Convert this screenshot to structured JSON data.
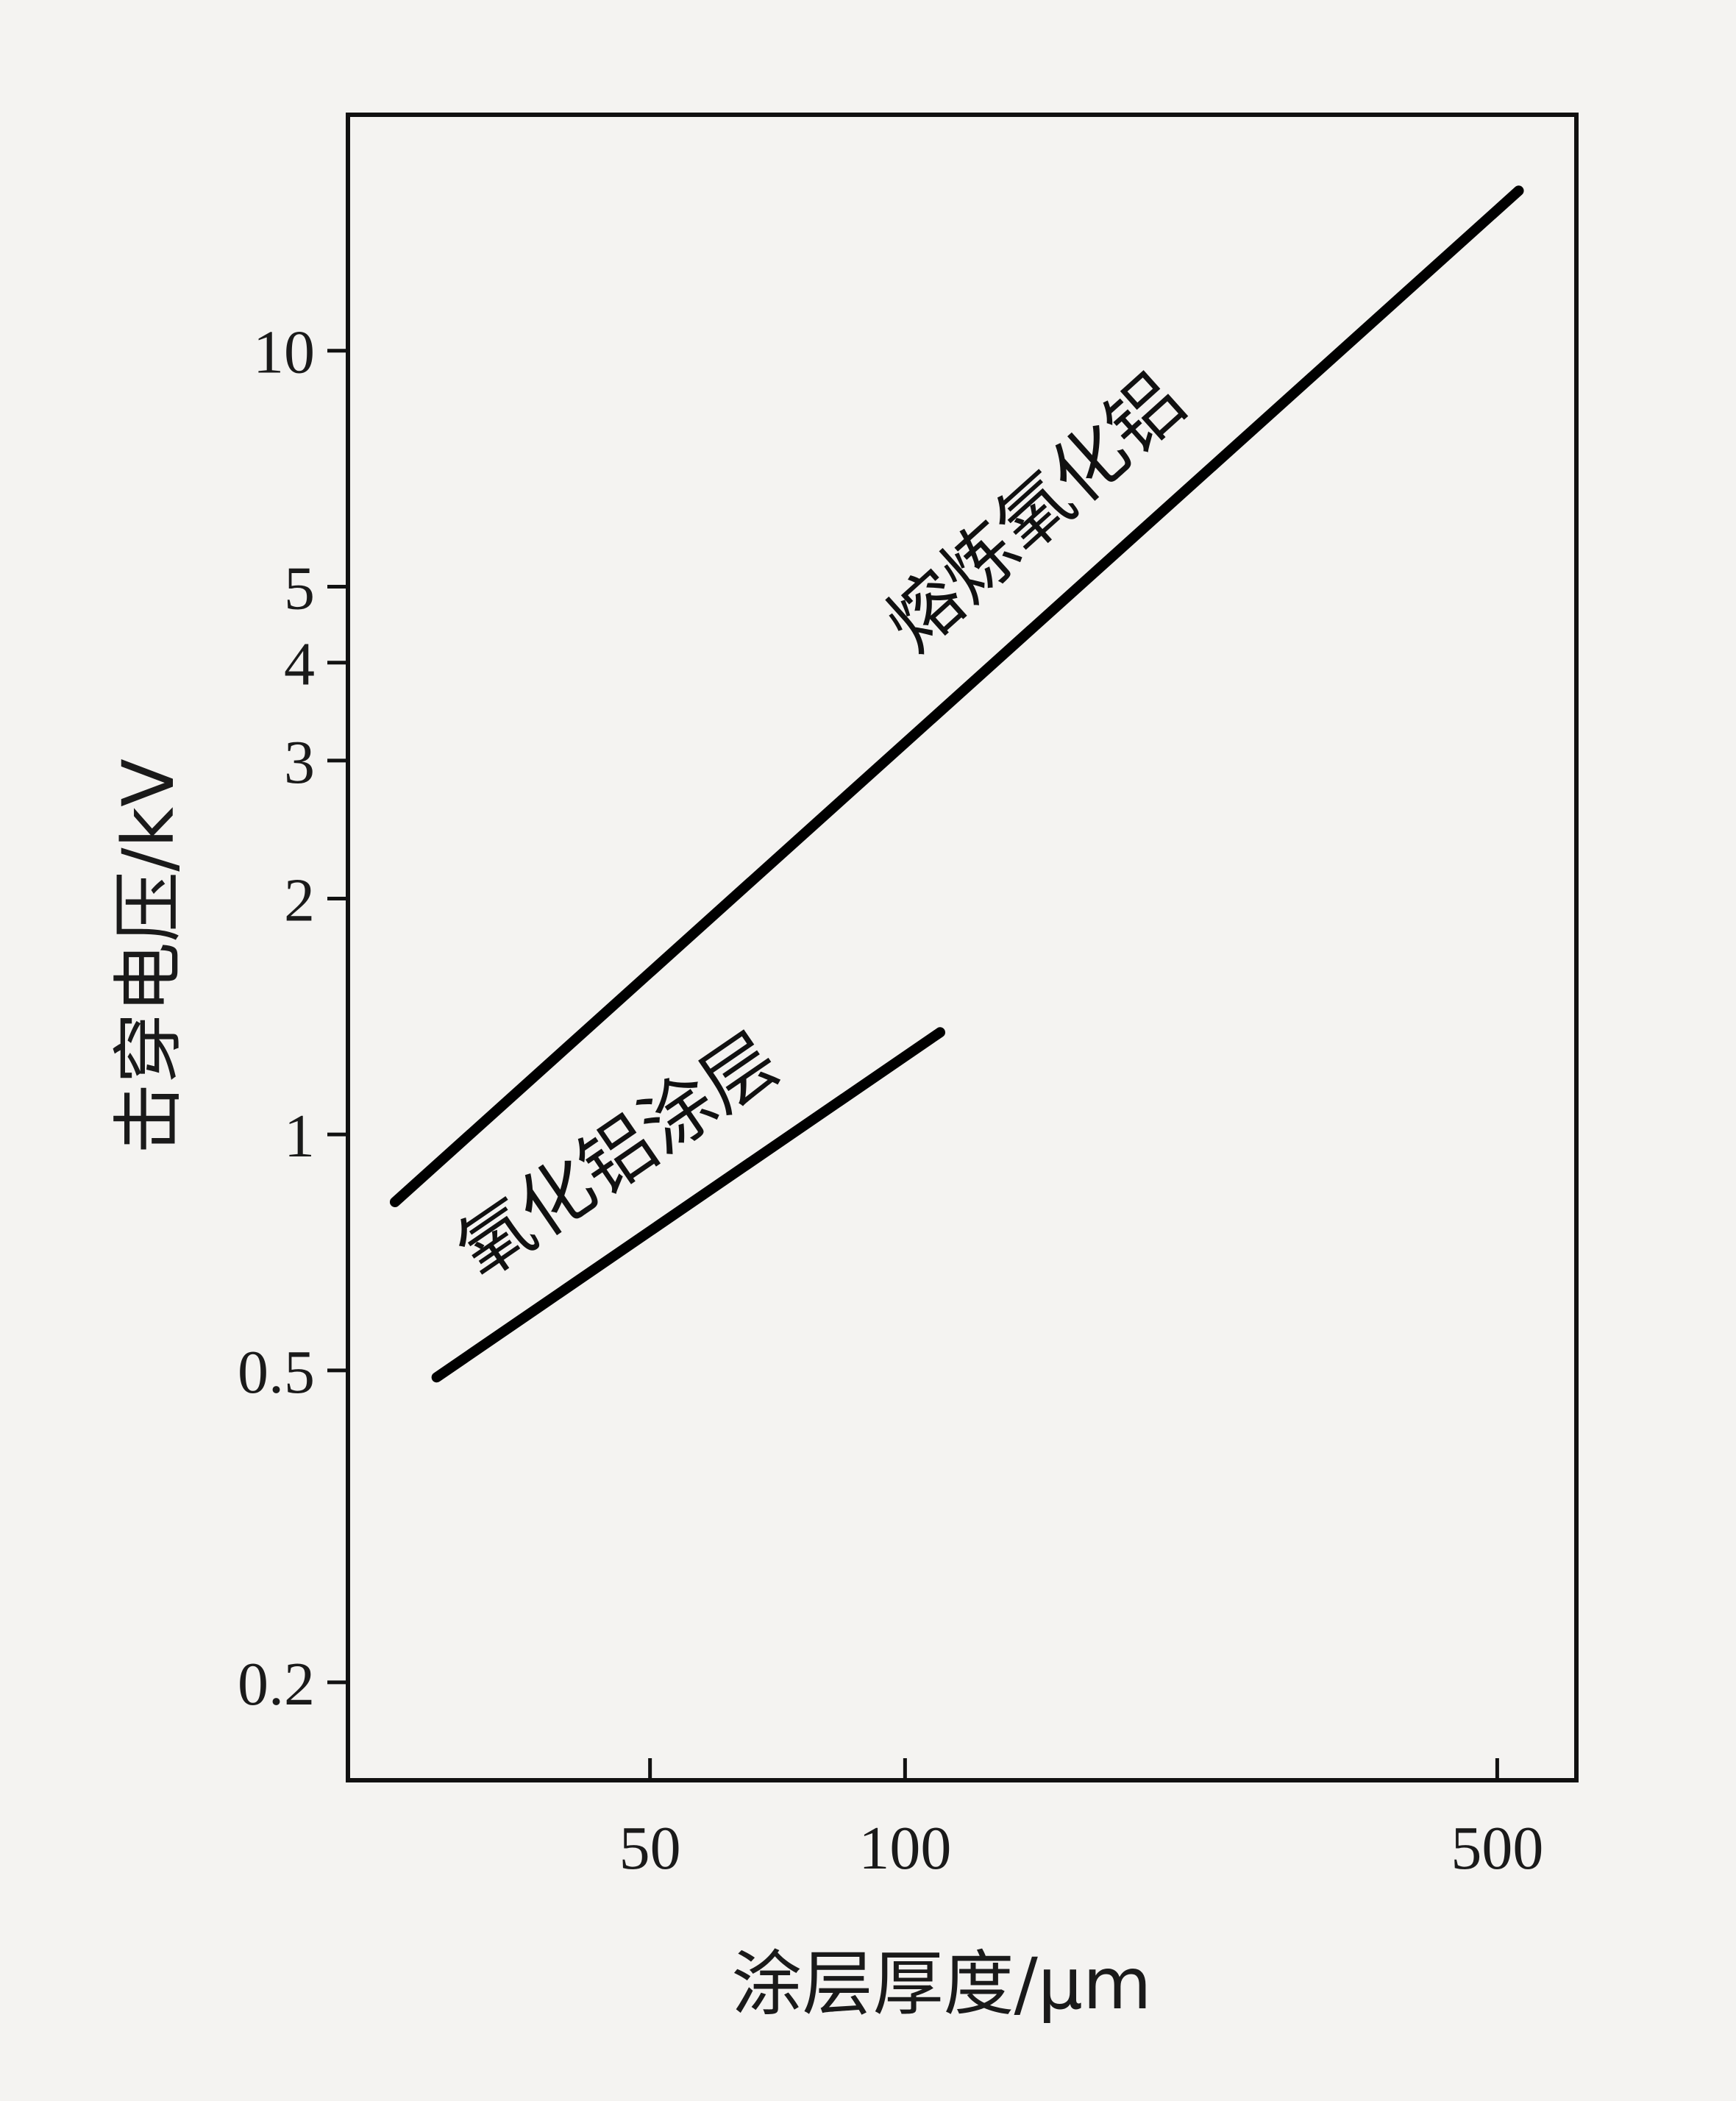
{
  "chart_data": {
    "type": "line",
    "xlabel": "涂层厚度/μm",
    "ylabel": "击穿电压/kV",
    "x_scale": "log",
    "y_scale": "log",
    "xlim": [
      22,
      620
    ],
    "ylim": [
      0.15,
      20
    ],
    "x_ticks": [
      {
        "value": 50,
        "label": "50"
      },
      {
        "value": 100,
        "label": "100"
      },
      {
        "value": 500,
        "label": "500"
      }
    ],
    "y_ticks": [
      {
        "value": 0.2,
        "label": "0.2"
      },
      {
        "value": 0.5,
        "label": "0.5"
      },
      {
        "value": 1,
        "label": "1"
      },
      {
        "value": 2,
        "label": "2"
      },
      {
        "value": 3,
        "label": "3"
      },
      {
        "value": 4,
        "label": "4"
      },
      {
        "value": 5,
        "label": "5"
      },
      {
        "value": 10,
        "label": "10"
      }
    ],
    "grid": false,
    "series": [
      {
        "name": "熔炼氧化铝",
        "x": [
          25,
          530
        ],
        "y": [
          0.82,
          16
        ]
      },
      {
        "name": "氧化铝涂层",
        "x": [
          28,
          110
        ],
        "y": [
          0.49,
          1.35
        ]
      }
    ],
    "line_color": "#000000"
  }
}
